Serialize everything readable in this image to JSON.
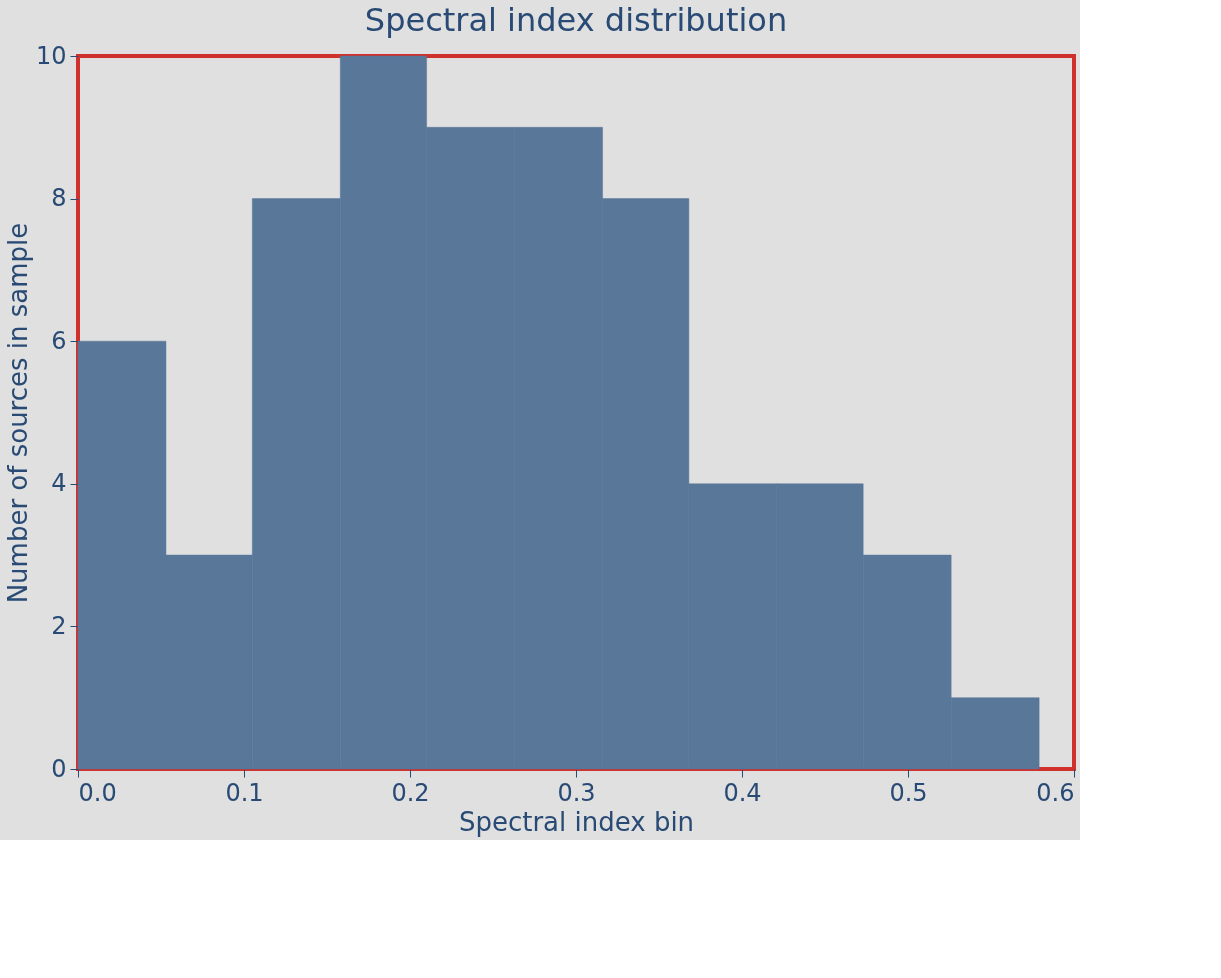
{
  "chart_data": {
    "type": "histogram",
    "title": "Spectral index distribution",
    "xlabel": "Spectral index bin",
    "ylabel": "Number of sources in sample",
    "bins": [
      0,
      0.053,
      0.105,
      0.158,
      0.21,
      0.263,
      0.316,
      0.368,
      0.421,
      0.473,
      0.526,
      0.579
    ],
    "values": [
      6,
      3,
      8,
      10,
      9,
      9,
      8,
      4,
      4,
      3,
      1
    ],
    "color": "#587799",
    "xlim": [
      0,
      0.6
    ],
    "xticks": [
      {
        "value": 0,
        "label": "0.0"
      },
      0.1,
      0.2,
      0.3,
      0.4,
      0.5,
      0.6
    ],
    "ylim": [
      0,
      10
    ],
    "yticks": [
      0,
      2,
      4,
      6,
      8,
      10
    ],
    "grid": false
  }
}
